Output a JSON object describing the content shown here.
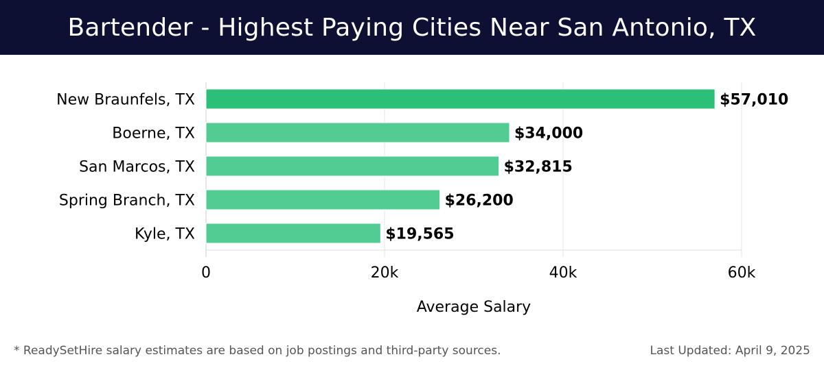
{
  "header": {
    "title": "Bartender - Highest Paying Cities Near San Antonio, TX"
  },
  "chart_data": {
    "type": "bar",
    "orientation": "horizontal",
    "categories": [
      "New Braunfels, TX",
      "Boerne, TX",
      "San Marcos, TX",
      "Spring Branch, TX",
      "Kyle, TX"
    ],
    "values": [
      57010,
      34000,
      32815,
      26200,
      19565
    ],
    "value_labels": [
      "$57,010",
      "$34,000",
      "$32,815",
      "$26,200",
      "$19,565"
    ],
    "xlabel": "Average Salary",
    "ylabel": "",
    "xlim": [
      0,
      60000
    ],
    "x_ticks": [
      0,
      20000,
      40000,
      60000
    ],
    "x_tick_labels": [
      "0",
      "20k",
      "40k",
      "60k"
    ],
    "grid": true,
    "colors": {
      "top_bar": "#2bbf78",
      "bar": "#52cc93"
    }
  },
  "footer": {
    "disclaimer": "* ReadySetHire salary estimates are based on job postings and third-party sources.",
    "updated": "Last Updated: April 9, 2025"
  }
}
